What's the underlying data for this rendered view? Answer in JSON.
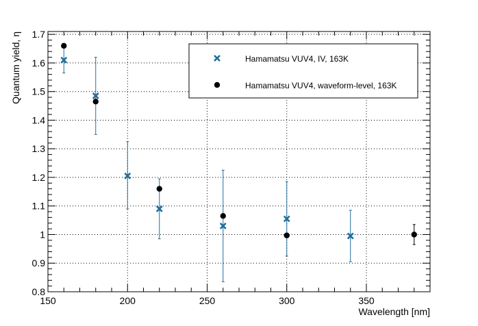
{
  "chart_data": {
    "type": "scatter",
    "title": "",
    "xlabel": "Wavelength [nm]",
    "ylabel": "Quantum yield, η",
    "xlim": [
      150,
      390
    ],
    "ylim": [
      0.8,
      1.71
    ],
    "x_ticks": [
      150,
      200,
      250,
      300,
      350
    ],
    "y_ticks": [
      0.8,
      0.9,
      1,
      1.1,
      1.2,
      1.3,
      1.4,
      1.5,
      1.6,
      1.7
    ],
    "x_tick_labels": [
      "150",
      "200",
      "250",
      "300",
      "350"
    ],
    "y_tick_labels": [
      "0.8",
      "0.9",
      "1",
      "1.1",
      "1.2",
      "1.3",
      "1.4",
      "1.5",
      "1.6",
      "1.7"
    ],
    "grid": true,
    "legend_position": "top-right",
    "series": [
      {
        "name": "Hamamatsu VUV4, IV, 163K",
        "marker": "x",
        "color": "#1f6e9c",
        "points": [
          {
            "x": 160,
            "y": 1.61,
            "err_low": 0.045,
            "err_high": 0.045
          },
          {
            "x": 180,
            "y": 1.485,
            "err_low": 0.135,
            "err_high": 0.135
          },
          {
            "x": 200,
            "y": 1.205,
            "err_low": 0.115,
            "err_high": 0.12
          },
          {
            "x": 220,
            "y": 1.09,
            "err_low": 0.105,
            "err_high": 0.105
          },
          {
            "x": 260,
            "y": 1.03,
            "err_low": 0.195,
            "err_high": 0.195
          },
          {
            "x": 300,
            "y": 1.055,
            "err_low": 0.13,
            "err_high": 0.13
          },
          {
            "x": 340,
            "y": 0.995,
            "err_low": 0.09,
            "err_high": 0.09
          }
        ]
      },
      {
        "name": "Hamamatsu VUV4, waveform-level, 163K",
        "marker": "circle",
        "color": "#000000",
        "points": [
          {
            "x": 160,
            "y": 1.66
          },
          {
            "x": 180,
            "y": 1.465
          },
          {
            "x": 220,
            "y": 1.16
          },
          {
            "x": 260,
            "y": 1.065
          },
          {
            "x": 300,
            "y": 0.997
          },
          {
            "x": 380,
            "y": 1.0,
            "err_low": 0.035,
            "err_high": 0.035
          }
        ]
      }
    ]
  }
}
